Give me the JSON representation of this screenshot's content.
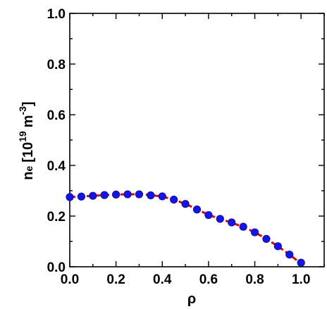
{
  "chart_data": {
    "type": "scatter",
    "title": "",
    "xlabel": "ρ",
    "ylabel": {
      "base": "n",
      "subscript": "e",
      "bracket_open": "[",
      "ten": "10",
      "ten_exp": "19",
      "unit": "m",
      "unit_exp": "-3",
      "bracket_close": "]"
    },
    "xlim": [
      0.0,
      1.1
    ],
    "ylim": [
      0.0,
      1.0
    ],
    "grid": false,
    "x_ticks": [
      "0.0",
      "0.2",
      "0.4",
      "0.6",
      "0.8",
      "1.0"
    ],
    "y_ticks": [
      "0.0",
      "0.2",
      "0.4",
      "0.6",
      "0.8",
      "1.0"
    ],
    "series": [
      {
        "kind": "points",
        "color": "#1414e6",
        "x": [
          0.0,
          0.05,
          0.1,
          0.15,
          0.2,
          0.25,
          0.3,
          0.35,
          0.4,
          0.45,
          0.5,
          0.55,
          0.6,
          0.65,
          0.7,
          0.75,
          0.8,
          0.85,
          0.9,
          0.95,
          1.0
        ],
        "y": [
          0.275,
          0.277,
          0.28,
          0.283,
          0.285,
          0.286,
          0.286,
          0.282,
          0.278,
          0.265,
          0.248,
          0.226,
          0.204,
          0.189,
          0.175,
          0.158,
          0.136,
          0.11,
          0.081,
          0.048,
          0.016
        ]
      },
      {
        "kind": "line",
        "color": "#e00000",
        "style": "dashed",
        "x": [
          0.0,
          0.05,
          0.1,
          0.15,
          0.2,
          0.25,
          0.3,
          0.35,
          0.4,
          0.45,
          0.5,
          0.55,
          0.6,
          0.65,
          0.7,
          0.75,
          0.8,
          0.85,
          0.9,
          0.95,
          1.0
        ],
        "y": [
          0.275,
          0.277,
          0.28,
          0.283,
          0.285,
          0.286,
          0.286,
          0.283,
          0.277,
          0.265,
          0.248,
          0.227,
          0.205,
          0.189,
          0.174,
          0.157,
          0.136,
          0.11,
          0.081,
          0.048,
          0.013
        ]
      }
    ]
  }
}
